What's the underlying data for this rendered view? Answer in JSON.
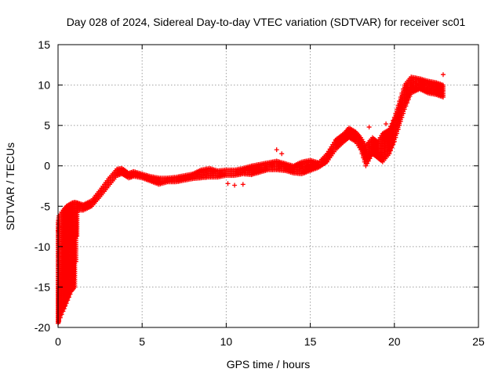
{
  "chart_data": {
    "type": "scatter",
    "title": "Day 028 of 2024, Sidereal Day-to-day VTEC variation (SDTVAR) for receiver sc01",
    "xlabel": "GPS time / hours",
    "ylabel": "SDTVAR / TECUs",
    "xlim": [
      0,
      25
    ],
    "ylim": [
      -20,
      15
    ],
    "xticks": [
      0,
      5,
      10,
      15,
      20,
      25
    ],
    "yticks": [
      -20,
      -15,
      -10,
      -5,
      0,
      5,
      10,
      15
    ],
    "grid": true,
    "marker": "+",
    "series_color": "#ff0000",
    "series": [
      {
        "name": "SDTVAR",
        "band": [
          [
            0.0,
            -19.5,
            -7.0
          ],
          [
            0.05,
            -19.2,
            -6.2
          ],
          [
            0.3,
            -18.0,
            -5.5
          ],
          [
            0.5,
            -17.0,
            -5.0
          ],
          [
            0.8,
            -15.5,
            -4.6
          ],
          [
            1.0,
            -15.0,
            -4.5
          ],
          [
            1.2,
            -5.5,
            -4.6
          ],
          [
            1.5,
            -5.5,
            -4.8
          ],
          [
            2.0,
            -5.0,
            -4.3
          ],
          [
            2.5,
            -3.8,
            -3.0
          ],
          [
            3.0,
            -2.5,
            -1.6
          ],
          [
            3.5,
            -1.2,
            -0.4
          ],
          [
            3.8,
            -1.0,
            -0.3
          ],
          [
            4.2,
            -1.5,
            -0.9
          ],
          [
            4.5,
            -1.3,
            -0.7
          ],
          [
            5.0,
            -1.5,
            -1.0
          ],
          [
            5.5,
            -1.9,
            -1.3
          ],
          [
            6.0,
            -2.3,
            -1.5
          ],
          [
            6.5,
            -2.0,
            -1.5
          ],
          [
            7.0,
            -2.0,
            -1.4
          ],
          [
            7.5,
            -1.8,
            -1.2
          ],
          [
            8.0,
            -1.6,
            -1.0
          ],
          [
            8.5,
            -1.5,
            -0.5
          ],
          [
            9.0,
            -1.4,
            -0.3
          ],
          [
            9.5,
            -1.4,
            -0.6
          ],
          [
            10.0,
            -1.2,
            -0.5
          ],
          [
            10.5,
            -1.2,
            -0.5
          ],
          [
            11.0,
            -1.0,
            -0.3
          ],
          [
            11.5,
            -1.1,
            0.0
          ],
          [
            12.0,
            -0.8,
            0.2
          ],
          [
            12.5,
            -0.5,
            0.4
          ],
          [
            13.0,
            -0.5,
            0.6
          ],
          [
            13.5,
            -0.6,
            0.3
          ],
          [
            14.0,
            -0.9,
            0.0
          ],
          [
            14.5,
            -1.0,
            0.5
          ],
          [
            15.0,
            -0.6,
            0.7
          ],
          [
            15.5,
            -0.2,
            0.4
          ],
          [
            16.0,
            0.5,
            1.5
          ],
          [
            16.5,
            2.0,
            3.2
          ],
          [
            17.0,
            3.0,
            4.0
          ],
          [
            17.3,
            3.5,
            4.7
          ],
          [
            17.7,
            3.0,
            4.2
          ],
          [
            18.0,
            2.0,
            3.5
          ],
          [
            18.3,
            0.0,
            2.5
          ],
          [
            18.7,
            1.5,
            3.5
          ],
          [
            19.0,
            1.0,
            3.0
          ],
          [
            19.3,
            0.5,
            4.0
          ],
          [
            19.7,
            1.5,
            4.5
          ],
          [
            20.0,
            3.0,
            6.0
          ],
          [
            20.3,
            5.0,
            8.0
          ],
          [
            20.6,
            7.0,
            10.0
          ],
          [
            21.0,
            9.0,
            11.0
          ],
          [
            21.5,
            9.5,
            10.8
          ],
          [
            22.0,
            9.0,
            10.5
          ],
          [
            22.5,
            8.8,
            10.3
          ],
          [
            22.9,
            8.5,
            10.0
          ]
        ],
        "stray_points": [
          [
            10.1,
            -2.2
          ],
          [
            10.5,
            -2.4
          ],
          [
            11.0,
            -2.3
          ],
          [
            13.0,
            2.0
          ],
          [
            13.3,
            1.5
          ],
          [
            22.9,
            11.3
          ],
          [
            18.5,
            4.8
          ],
          [
            19.5,
            5.2
          ],
          [
            0.0,
            -8.0
          ],
          [
            0.1,
            -7.5
          ]
        ]
      }
    ]
  }
}
